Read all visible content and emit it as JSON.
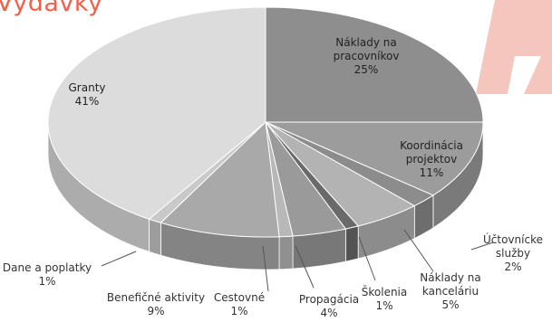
{
  "title": "Výdavky",
  "chart_data": {
    "type": "pie",
    "title": "Výdavky",
    "slices": [
      {
        "name": "Náklady na\npracovníkov",
        "value": 25,
        "value_label": "25%",
        "color": "#8e8e8e"
      },
      {
        "name": "Koordinácia\nprojektov",
        "value": 11,
        "value_label": "11%",
        "color": "#9c9c9c"
      },
      {
        "name": "Účtovnícke\nslužby",
        "value": 2,
        "value_label": "2%",
        "color": "#8c8c8c"
      },
      {
        "name": "Náklady na\nkanceláriu",
        "value": 5,
        "value_label": "5%",
        "color": "#b3b3b3"
      },
      {
        "name": "Školenia",
        "value": 1,
        "value_label": "1%",
        "color": "#6a6a6a"
      },
      {
        "name": "Propagácia",
        "value": 4,
        "value_label": "4%",
        "color": "#9a9a9a"
      },
      {
        "name": "Cestovné",
        "value": 1,
        "value_label": "1%",
        "color": "#b8b8b8"
      },
      {
        "name": "Benefičné aktivity",
        "value": 9,
        "value_label": "9%",
        "color": "#a9a9a9"
      },
      {
        "name": "Dane a poplatky",
        "value": 1,
        "value_label": "1%",
        "color": "#c9c9c9"
      },
      {
        "name": "Granty",
        "value": 41,
        "value_label": "41%",
        "color": "#dcdcdc"
      }
    ],
    "legend": "none",
    "labels": "data labels with leader lines"
  },
  "watermark_color": "#f2b3a8"
}
